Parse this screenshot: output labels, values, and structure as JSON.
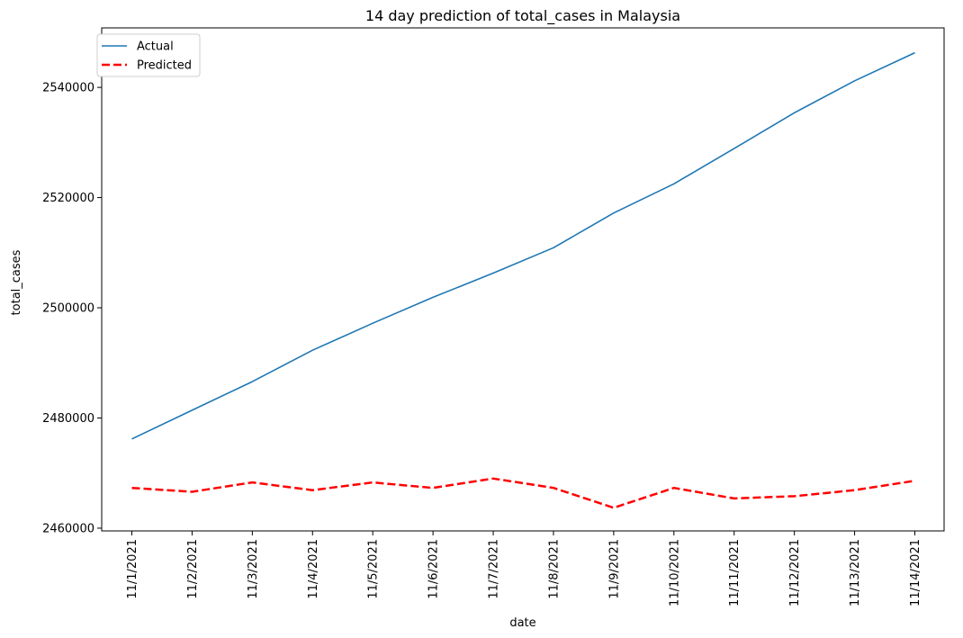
{
  "chart_data": {
    "type": "line",
    "title": "14 day prediction of total_cases in Malaysia",
    "xlabel": "date",
    "ylabel": "total_cases",
    "categories": [
      "11/1/2021",
      "11/2/2021",
      "11/3/2021",
      "11/4/2021",
      "11/5/2021",
      "11/6/2021",
      "11/7/2021",
      "11/8/2021",
      "11/9/2021",
      "11/10/2021",
      "11/11/2021",
      "11/12/2021",
      "11/13/2021",
      "11/14/2021"
    ],
    "ylim": [
      2459500,
      2550800
    ],
    "yticks": [
      2460000,
      2480000,
      2500000,
      2520000,
      2540000
    ],
    "ytick_labels": [
      "2460000",
      "2480000",
      "2500000",
      "2520000",
      "2540000"
    ],
    "series": [
      {
        "name": "Actual",
        "color": "#1f77b4",
        "style": "solid",
        "values": [
          2476200,
          2481400,
          2486600,
          2492300,
          2497200,
          2501900,
          2506300,
          2510900,
          2517200,
          2522500,
          2528900,
          2535400,
          2541200,
          2546300
        ]
      },
      {
        "name": "Predicted",
        "color": "#ff0000",
        "style": "dashed",
        "values": [
          2467300,
          2466600,
          2468300,
          2466900,
          2468300,
          2467300,
          2469000,
          2467300,
          2463700,
          2467300,
          2465400,
          2465800,
          2466900,
          2468600
        ]
      }
    ],
    "legend_position": "top-left",
    "grid": false
  }
}
